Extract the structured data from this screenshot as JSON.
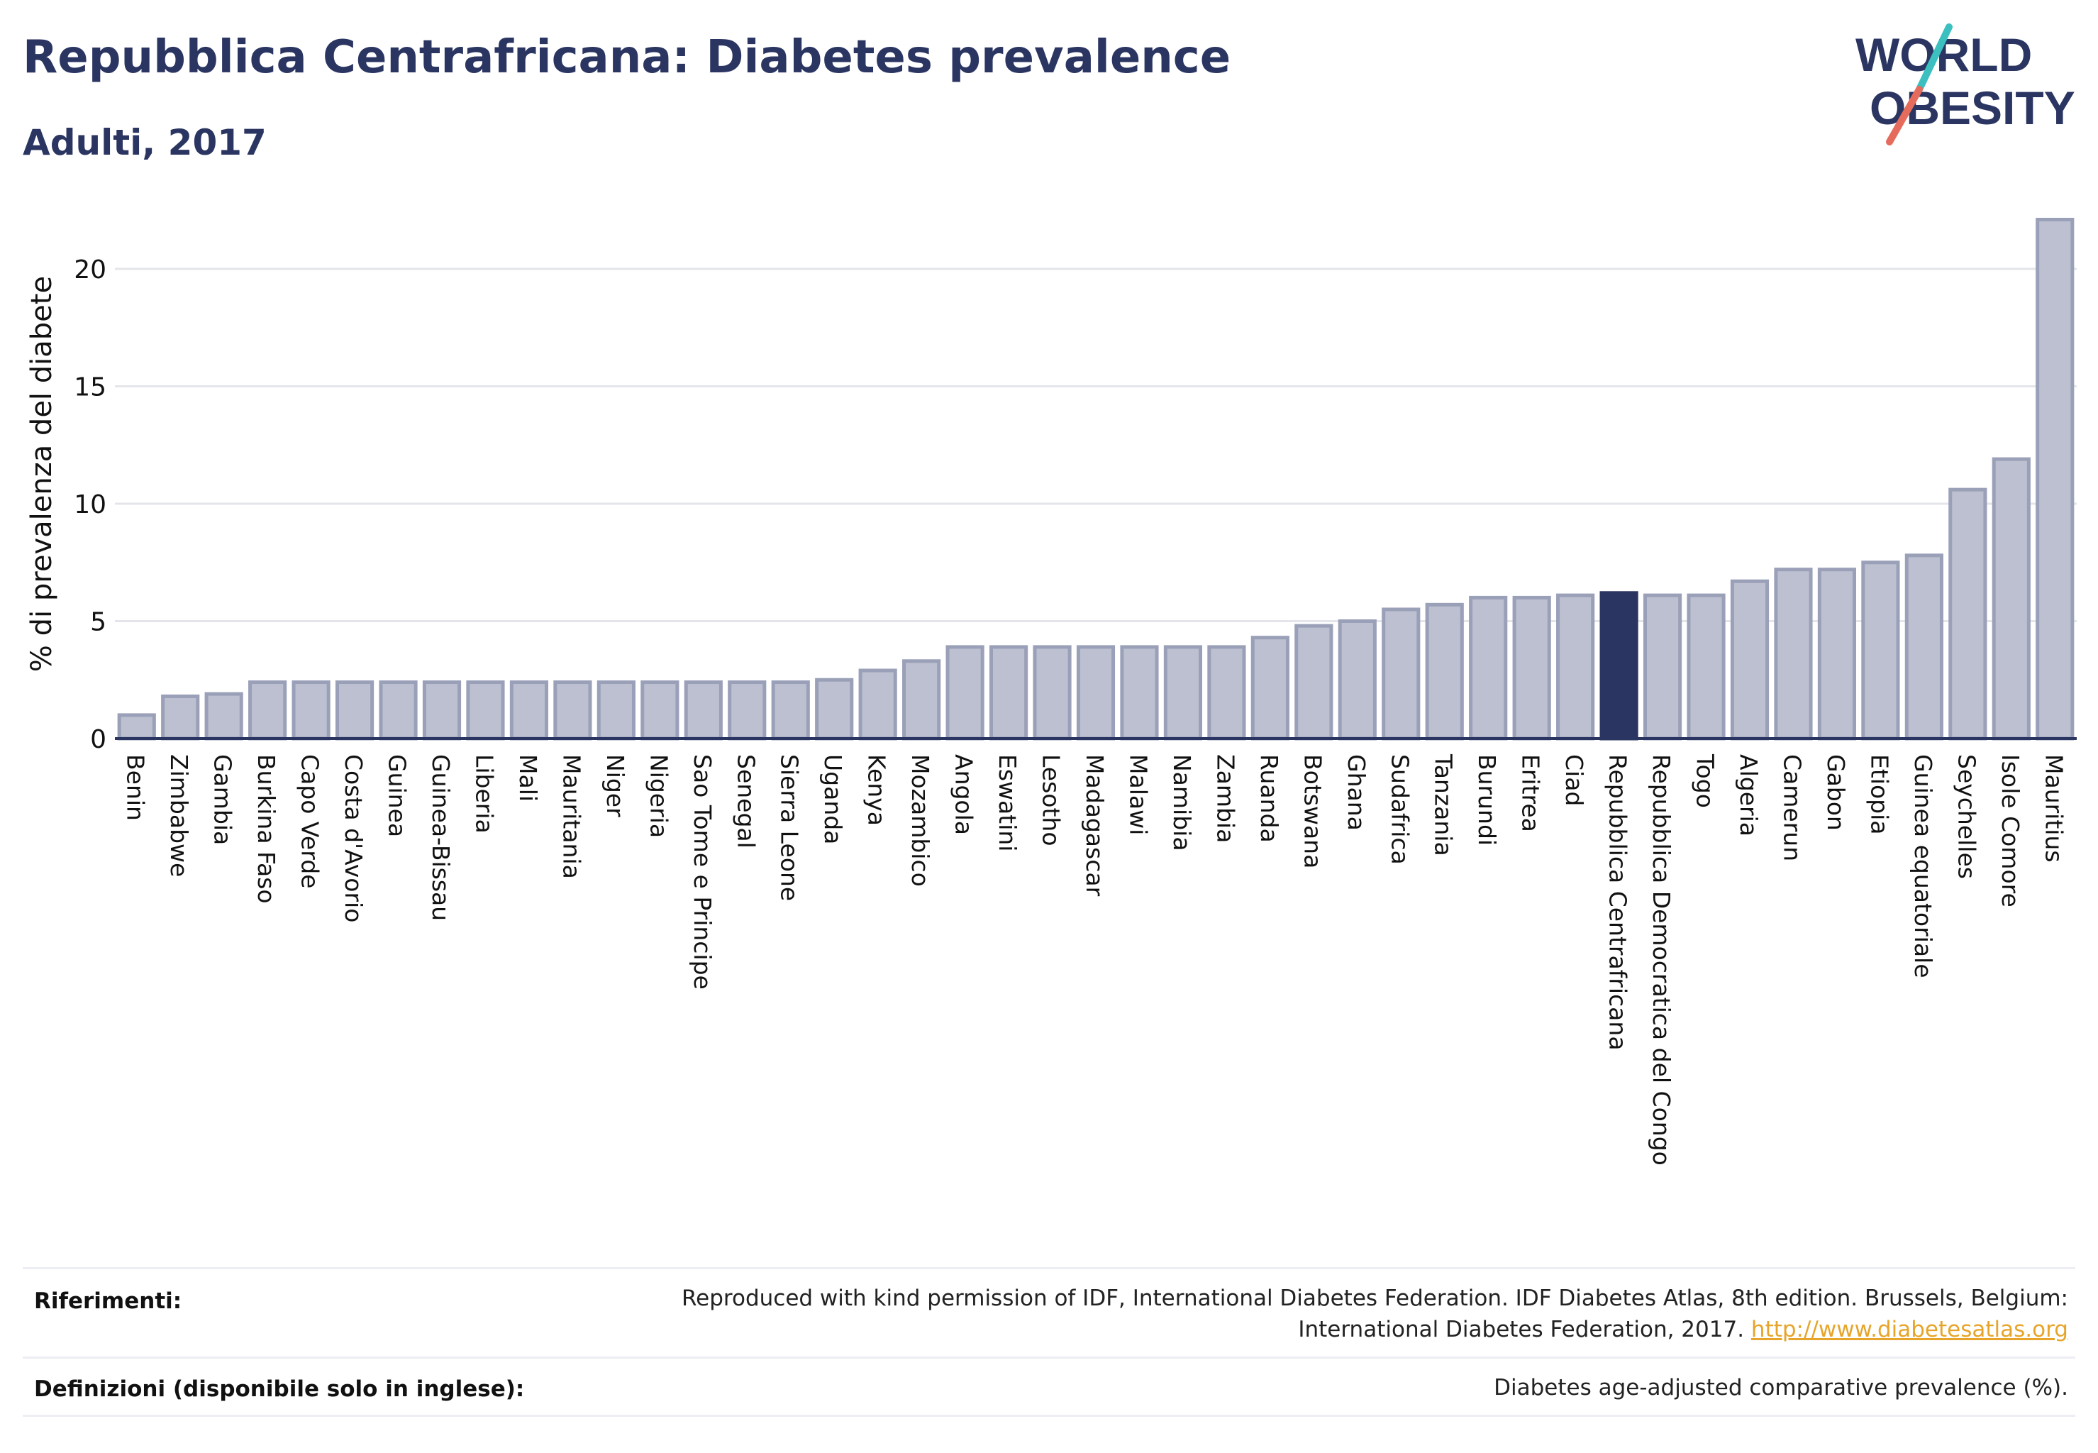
{
  "title": "Repubblica Centrafricana: Diabetes prevalence",
  "subtitle": "Adulti, 2017",
  "logo": {
    "line1": "WORLD",
    "line2": "OBESITY",
    "accent_colors": [
      "#3bbfbf",
      "#e56b5d"
    ]
  },
  "colors": {
    "bar": "#bcc0d0",
    "bar_edge": "#9aa0b8",
    "highlight": "#2b3561",
    "grid": "#e3e5ea",
    "axis": "#2b3561"
  },
  "chart_data": {
    "type": "bar",
    "ylabel": "% di prevalenza del diabete",
    "xlabel": "",
    "ylim": [
      0,
      22.5
    ],
    "yticks": [
      0,
      5,
      10,
      15,
      20
    ],
    "grid": true,
    "highlight": "Repubblica Centrafricana",
    "categories": [
      "Benin",
      "Zimbabwe",
      "Gambia",
      "Burkina Faso",
      "Capo Verde",
      "Costa d'Avorio",
      "Guinea",
      "Guinea-Bissau",
      "Liberia",
      "Mali",
      "Mauritania",
      "Niger",
      "Nigeria",
      "Sao Tome e Principe",
      "Senegal",
      "Sierra Leone",
      "Uganda",
      "Kenya",
      "Mozambico",
      "Angola",
      "Eswatini",
      "Lesotho",
      "Madagascar",
      "Malawi",
      "Namibia",
      "Zambia",
      "Ruanda",
      "Botswana",
      "Ghana",
      "Sudafrica",
      "Tanzania",
      "Burundi",
      "Eritrea",
      "Ciad",
      "Repubblica Centrafricana",
      "Repubblica Democratica del Congo",
      "Togo",
      "Algeria",
      "Camerun",
      "Gabon",
      "Etiopia",
      "Guinea equatoriale",
      "Seychelles",
      "Isole Comore",
      "Mauritius"
    ],
    "values": [
      1.0,
      1.8,
      1.9,
      2.4,
      2.4,
      2.4,
      2.4,
      2.4,
      2.4,
      2.4,
      2.4,
      2.4,
      2.4,
      2.4,
      2.4,
      2.4,
      2.5,
      2.9,
      3.3,
      3.9,
      3.9,
      3.9,
      3.9,
      3.9,
      3.9,
      3.9,
      4.3,
      4.8,
      5.0,
      5.5,
      5.7,
      6.0,
      6.0,
      6.1,
      6.2,
      6.1,
      6.1,
      6.7,
      7.2,
      7.2,
      7.5,
      7.8,
      10.6,
      11.9,
      22.1
    ]
  },
  "footer": {
    "ref_label": "Riferimenti:",
    "ref_line1": "Reproduced with kind permission of IDF, International Diabetes Federation. IDF Diabetes Atlas, 8th edition. Brussels, Belgium:",
    "ref_line2": "International Diabetes Federation, 2017.",
    "ref_link": "http://www.diabetesatlas.org",
    "def_label": "Definizioni (disponibile solo in inglese):",
    "def_text": "Diabetes age-adjusted comparative prevalence (%)."
  }
}
